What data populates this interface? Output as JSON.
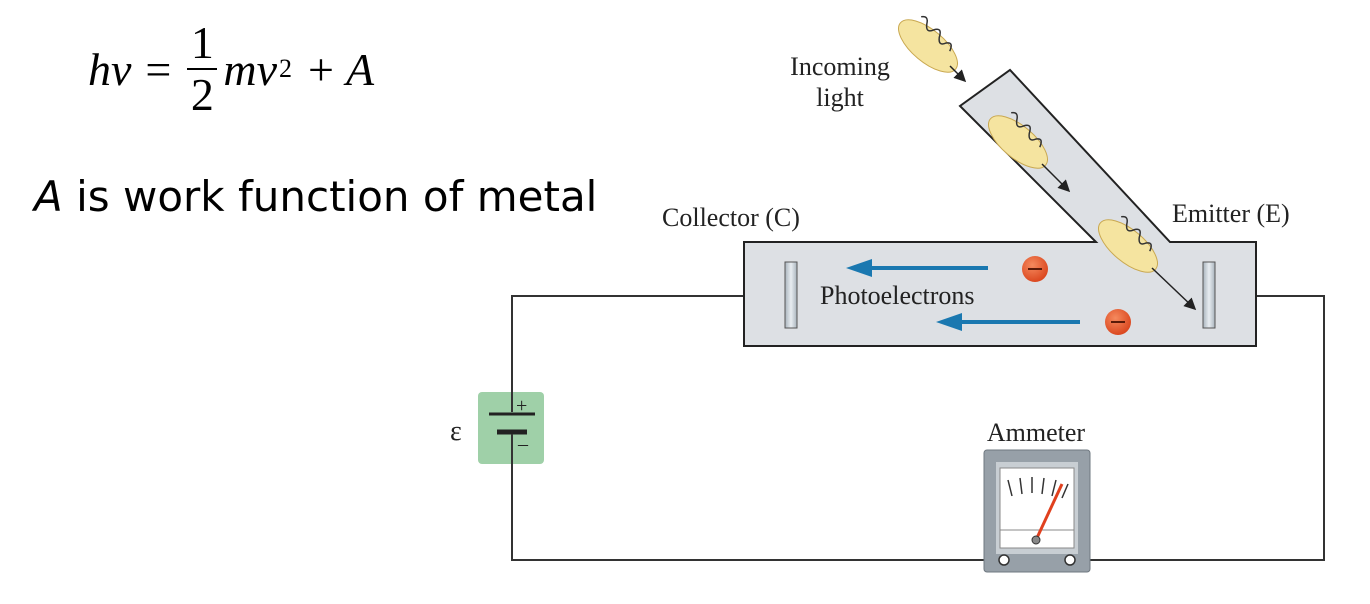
{
  "equation": {
    "lhs_h": "h",
    "lhs_nu": "ν",
    "equals": "=",
    "frac_num": "1",
    "frac_den": "2",
    "m": "m",
    "v": "v",
    "exp": "2",
    "plus": "+",
    "A": "A"
  },
  "note": {
    "symbol": "A",
    "text": " is work function of metal"
  },
  "diagram": {
    "incoming_light_line1": "Incoming",
    "incoming_light_line2": "light",
    "collector": "Collector (C)",
    "emitter": "Emitter (E)",
    "photoelectrons": "Photoelectrons",
    "emf_symbol": "ε",
    "plus_sign": "+",
    "minus_sign": "–",
    "ammeter": "Ammeter"
  },
  "colors": {
    "tube": "#dde0e4",
    "arrow": "#1a78b0",
    "electron": "#e8502a",
    "photon": "#f5e4a0",
    "battery": "#9fd0a8",
    "ammeter_body": "#97a0a8"
  }
}
